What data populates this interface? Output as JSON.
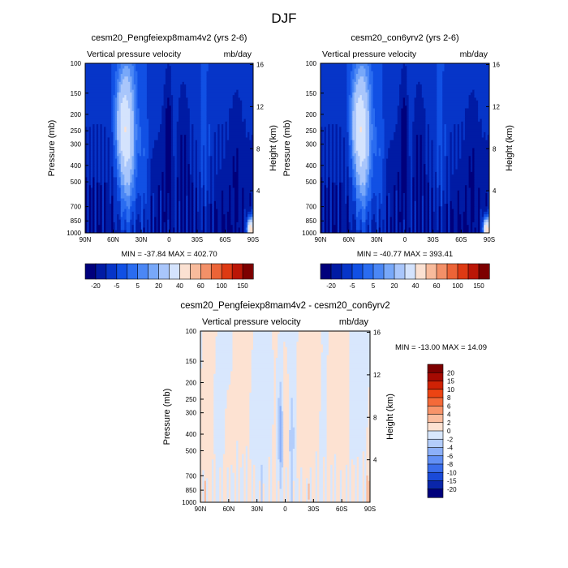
{
  "title": "DJF",
  "chart_data": [
    {
      "type": "heatmap",
      "title": "cesm20_Pengfeiexp8mam4v2 (yrs 2-6)",
      "left_label": "Vertical pressure velocity",
      "right_label": "mb/day",
      "ylabel": "Pressure (mb)",
      "ylabel_right": "Height (km)",
      "yscale": "log",
      "ylim": [
        1000,
        100
      ],
      "y_ticks": [
        "100",
        "150",
        "200",
        "250",
        "300",
        "400",
        "500",
        "700",
        "850",
        "1000"
      ],
      "x_ticks": [
        "90N",
        "60N",
        "30N",
        "0",
        "30S",
        "60S",
        "90S"
      ],
      "height_ticks": [
        "16",
        "12",
        "8",
        "4"
      ],
      "stats": "MIN = -37.84   MAX = 402.70",
      "colorbar_labels": [
        "-20",
        "-5",
        "5",
        "20",
        "40",
        "60",
        "100",
        "150"
      ],
      "features": [
        {
          "lat": 45,
          "p": 400,
          "value": 20
        },
        {
          "lat": 0,
          "p": 400,
          "value": -20
        },
        {
          "lat": -15,
          "p": 500,
          "value": -15
        },
        {
          "lat": -75,
          "p": 400,
          "value": -10
        },
        {
          "lat": -87,
          "p": 900,
          "value": 100
        }
      ]
    },
    {
      "type": "heatmap",
      "title": "cesm20_con6yrv2 (yrs 2-6)",
      "left_label": "Vertical pressure velocity",
      "right_label": "mb/day",
      "ylabel": "Pressure (mb)",
      "ylabel_right": "Height (km)",
      "yscale": "log",
      "ylim": [
        1000,
        100
      ],
      "y_ticks": [
        "100",
        "150",
        "200",
        "250",
        "300",
        "400",
        "500",
        "700",
        "850",
        "1000"
      ],
      "x_ticks": [
        "90N",
        "60N",
        "30N",
        "0",
        "30S",
        "60S",
        "90S"
      ],
      "height_ticks": [
        "16",
        "12",
        "8",
        "4"
      ],
      "stats": "MIN = -40.77   MAX = 393.41",
      "colorbar_labels": [
        "-20",
        "-5",
        "5",
        "20",
        "40",
        "60",
        "100",
        "150"
      ],
      "features": [
        {
          "lat": 45,
          "p": 400,
          "value": 20
        },
        {
          "lat": 0,
          "p": 400,
          "value": -20
        },
        {
          "lat": -15,
          "p": 500,
          "value": -15
        },
        {
          "lat": -75,
          "p": 400,
          "value": -10
        },
        {
          "lat": -87,
          "p": 900,
          "value": 100
        }
      ]
    },
    {
      "type": "heatmap",
      "title": "cesm20_Pengfeiexp8mam4v2 - cesm20_con6yrv2",
      "left_label": "Vertical pressure velocity",
      "right_label": "mb/day",
      "ylabel": "Pressure (mb)",
      "ylabel_right": "Height (km)",
      "yscale": "log",
      "ylim": [
        1000,
        100
      ],
      "y_ticks": [
        "100",
        "150",
        "200",
        "250",
        "300",
        "400",
        "500",
        "700",
        "850",
        "1000"
      ],
      "x_ticks": [
        "90N",
        "60N",
        "30N",
        "0",
        "30S",
        "60S",
        "90S"
      ],
      "height_ticks": [
        "16",
        "12",
        "8",
        "4"
      ],
      "stats": "MIN = -13.00  MAX =  14.09",
      "colorbar_labels": [
        "20",
        "15",
        "10",
        "8",
        "6",
        "4",
        "2",
        "0",
        "-2",
        "-4",
        "-6",
        "-8",
        "-10",
        "-15",
        "-20"
      ],
      "features": [
        {
          "lat": 80,
          "p": 300,
          "value": 2
        },
        {
          "lat": 10,
          "p": 400,
          "value": -6
        },
        {
          "lat": 3,
          "p": 500,
          "value": -8
        },
        {
          "lat": -20,
          "p": 300,
          "value": 2
        },
        {
          "lat": -88,
          "p": 850,
          "value": 8
        }
      ]
    }
  ],
  "colors": {
    "top_scale": [
      "#00007c",
      "#001ba4",
      "#0635c8",
      "#1150e4",
      "#2a6cf0",
      "#4b87f5",
      "#78a8f9",
      "#a9c6fb",
      "#d4e3fd",
      "#fbe1d2",
      "#f8bb9c",
      "#f39068",
      "#ec6437",
      "#de3a13",
      "#bb1606",
      "#7d0000"
    ],
    "diff_scale": [
      "#7d0000",
      "#a50a02",
      "#cf2205",
      "#ec4413",
      "#f46a39",
      "#f8946a",
      "#fbbd9e",
      "#fde2d2",
      "#d8e7fd",
      "#b3cdfb",
      "#8cb0f9",
      "#6290f5",
      "#3a6deb",
      "#1a4ad8",
      "#0a26aa",
      "#00007c"
    ]
  }
}
